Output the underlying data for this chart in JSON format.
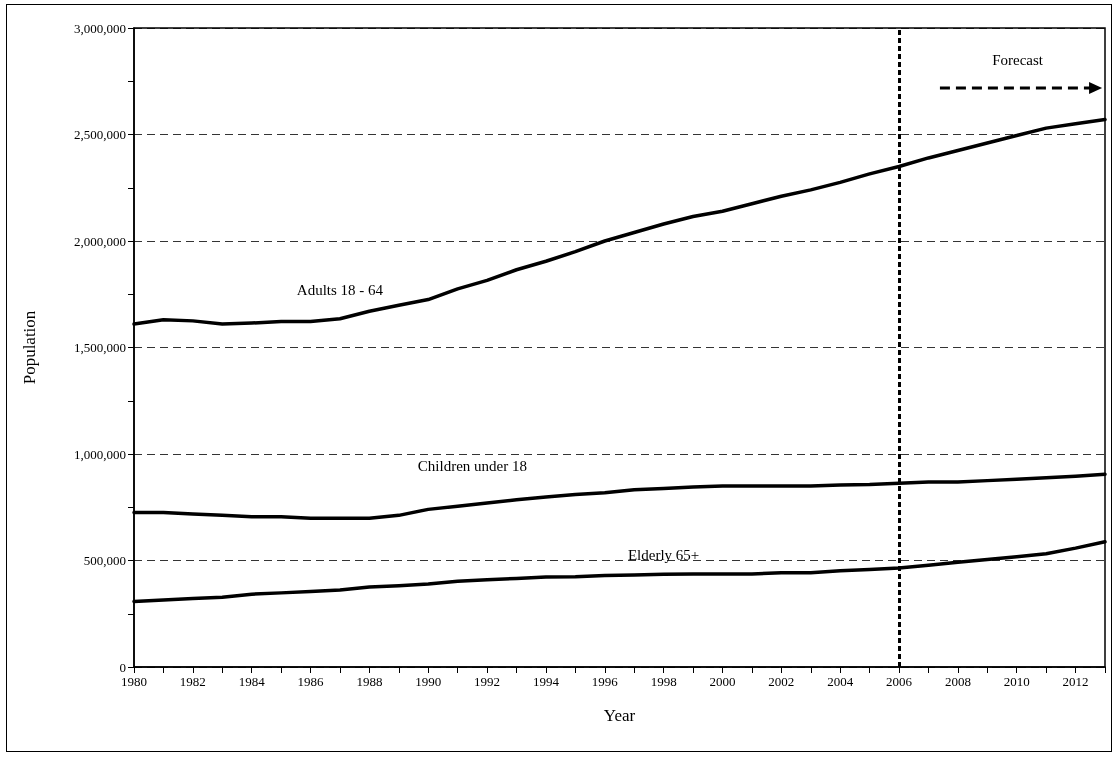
{
  "chart_data": {
    "type": "line",
    "xlabel": "Year",
    "ylabel": "Population",
    "legend": false,
    "marker": "none",
    "line_style": "solid",
    "grid": "y",
    "x": [
      1980,
      1981,
      1982,
      1983,
      1984,
      1985,
      1986,
      1987,
      1988,
      1989,
      1990,
      1991,
      1992,
      1993,
      1994,
      1995,
      1996,
      1997,
      1998,
      1999,
      2000,
      2001,
      2002,
      2003,
      2004,
      2005,
      2006,
      2007,
      2008,
      2009,
      2010,
      2011,
      2012,
      2013
    ],
    "series": [
      {
        "name": "Adults 18 - 64",
        "color": "#000000",
        "values": [
          1610000,
          1630000,
          1625000,
          1610000,
          1615000,
          1622000,
          1622000,
          1635000,
          1670000,
          1698000,
          1725000,
          1775000,
          1815000,
          1865000,
          1905000,
          1950000,
          2000000,
          2040000,
          2080000,
          2115000,
          2140000,
          2175000,
          2210000,
          2240000,
          2275000,
          2315000,
          2350000,
          2390000,
          2425000,
          2460000,
          2495000,
          2530000,
          2550000,
          2570000
        ]
      },
      {
        "name": "Children under 18",
        "color": "#000000",
        "values": [
          725000,
          725000,
          718000,
          712000,
          705000,
          705000,
          698000,
          698000,
          698000,
          712000,
          740000,
          755000,
          770000,
          785000,
          798000,
          810000,
          818000,
          832000,
          838000,
          845000,
          850000,
          850000,
          850000,
          850000,
          855000,
          857000,
          863000,
          868000,
          868000,
          875000,
          882000,
          888000,
          896000,
          905000
        ]
      },
      {
        "name": "Elderly 65+",
        "color": "#000000",
        "values": [
          308000,
          315000,
          322000,
          328000,
          342000,
          348000,
          355000,
          362000,
          376000,
          382000,
          390000,
          403000,
          410000,
          416000,
          422000,
          424000,
          430000,
          432000,
          436000,
          437000,
          437000,
          437000,
          442000,
          443000,
          452000,
          458000,
          465000,
          478000,
          492000,
          505000,
          518000,
          532000,
          558000,
          588000
        ]
      }
    ],
    "xlim": [
      1980,
      2013
    ],
    "xticks": [
      1980,
      {
        "value": 1981,
        "label": null
      },
      1982,
      {
        "value": 1983,
        "label": null
      },
      1984,
      {
        "value": 1985,
        "label": null
      },
      1986,
      {
        "value": 1987,
        "label": null
      },
      1988,
      {
        "value": 1989,
        "label": null
      },
      1990,
      {
        "value": 1991,
        "label": null
      },
      1992,
      {
        "value": 1993,
        "label": null
      },
      1994,
      {
        "value": 1995,
        "label": null
      },
      1996,
      {
        "value": 1997,
        "label": null
      },
      1998,
      {
        "value": 1999,
        "label": null
      },
      2000,
      {
        "value": 2001,
        "label": null
      },
      2002,
      {
        "value": 2003,
        "label": null
      },
      2004,
      {
        "value": 2005,
        "label": null
      },
      2006,
      {
        "value": 2007,
        "label": null
      },
      2008,
      {
        "value": 2009,
        "label": null
      },
      2010,
      {
        "value": 2011,
        "label": null
      },
      2012,
      {
        "value": 2013,
        "label": null
      }
    ],
    "ylim": [
      0,
      3000000
    ],
    "yticks": [
      0,
      {
        "value": 250000,
        "label": null
      },
      {
        "value": 500000,
        "label": "500,000"
      },
      {
        "value": 750000,
        "label": null
      },
      {
        "value": 1000000,
        "label": "1,000,000"
      },
      {
        "value": 1250000,
        "label": null
      },
      {
        "value": 1500000,
        "label": "1,500,000"
      },
      {
        "value": 1750000,
        "label": null
      },
      {
        "value": 2000000,
        "label": "2,000,000"
      },
      {
        "value": 2250000,
        "label": null
      },
      {
        "value": 2500000,
        "label": "2,500,000"
      },
      {
        "value": 2750000,
        "label": null
      },
      {
        "value": 3000000,
        "label": "3,000,000"
      }
    ],
    "ref_lines": [
      {
        "axis": "x",
        "value": 2006,
        "color": "#000000",
        "line_style": "dotted"
      }
    ],
    "annotations": [
      "Forecast"
    ]
  }
}
